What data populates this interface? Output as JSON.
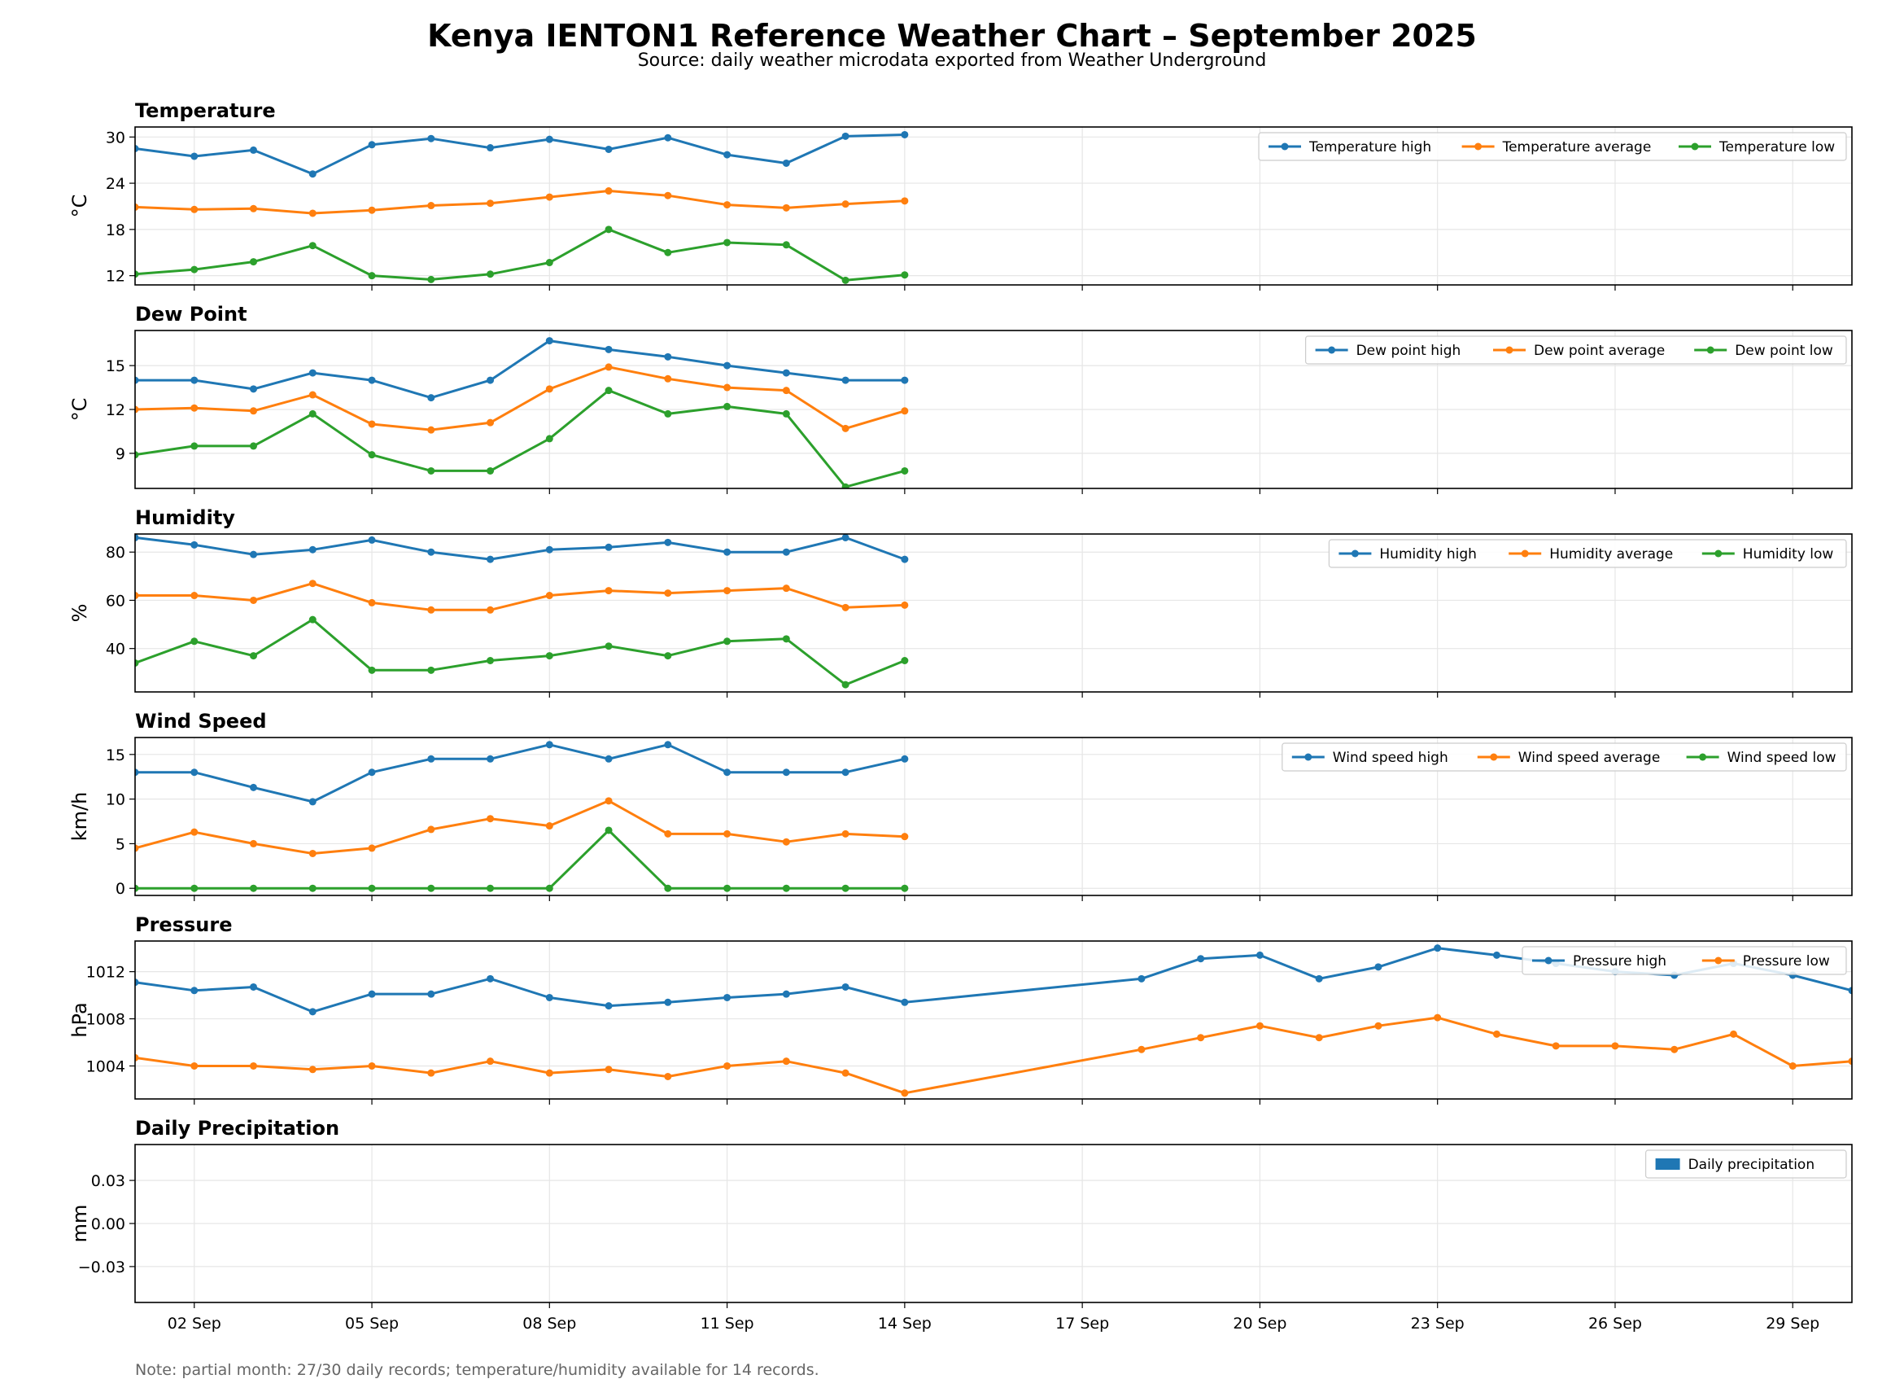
{
  "header": {
    "title": "Kenya IENTON1 Reference Weather Chart – September 2025",
    "subtitle": "Source: daily weather microdata exported from Weather Underground"
  },
  "footnote": "Note: partial month: 27/30 daily records; temperature/humidity available for 14 records.",
  "colors": {
    "blue": "#1f77b4",
    "orange": "#ff7f0e",
    "green": "#2ca02c",
    "grid": "#e6e6e6"
  },
  "x_axis": {
    "ticks": [
      2,
      5,
      8,
      11,
      14,
      17,
      20,
      23,
      26,
      29
    ],
    "tick_labels": [
      "02 Sep",
      "05 Sep",
      "08 Sep",
      "11 Sep",
      "14 Sep",
      "17 Sep",
      "20 Sep",
      "23 Sep",
      "26 Sep",
      "29 Sep"
    ],
    "range": [
      1,
      30
    ]
  },
  "chart_data": [
    {
      "type": "line",
      "title": "Temperature",
      "ylabel": "°C",
      "ylim": [
        10.8,
        31.3
      ],
      "yticks": [
        12,
        18,
        24,
        30
      ],
      "legend": "top-right",
      "grid": true,
      "series": [
        {
          "name": "Temperature high",
          "color": "#1f77b4",
          "x": [
            1,
            2,
            3,
            4,
            5,
            6,
            7,
            8,
            9,
            10,
            11,
            12,
            13,
            14
          ],
          "y": [
            28.5,
            27.5,
            28.3,
            25.2,
            29,
            29.8,
            28.6,
            29.7,
            28.4,
            29.9,
            27.7,
            26.6,
            30.1,
            30.3
          ]
        },
        {
          "name": "Temperature average",
          "color": "#ff7f0e",
          "x": [
            1,
            2,
            3,
            4,
            5,
            6,
            7,
            8,
            9,
            10,
            11,
            12,
            13,
            14
          ],
          "y": [
            20.9,
            20.6,
            20.7,
            20.1,
            20.5,
            21.1,
            21.4,
            22.2,
            23,
            22.4,
            21.2,
            20.8,
            21.3,
            21.7
          ]
        },
        {
          "name": "Temperature low",
          "color": "#2ca02c",
          "x": [
            1,
            2,
            3,
            4,
            5,
            6,
            7,
            8,
            9,
            10,
            11,
            12,
            13,
            14
          ],
          "y": [
            12.2,
            12.8,
            13.8,
            15.9,
            12,
            11.5,
            12.2,
            13.7,
            18,
            15,
            16.3,
            16,
            11.4,
            12.1
          ]
        }
      ]
    },
    {
      "type": "line",
      "title": "Dew Point",
      "ylabel": "°C",
      "ylim": [
        6.6,
        17.4
      ],
      "yticks": [
        9,
        12,
        15
      ],
      "legend": "top-right",
      "grid": true,
      "series": [
        {
          "name": "Dew point high",
          "color": "#1f77b4",
          "x": [
            1,
            2,
            3,
            4,
            5,
            6,
            7,
            8,
            9,
            10,
            11,
            12,
            13,
            14
          ],
          "y": [
            14,
            14,
            13.4,
            14.5,
            14,
            12.8,
            14,
            16.7,
            16.1,
            15.6,
            15,
            14.5,
            14,
            14
          ]
        },
        {
          "name": "Dew point average",
          "color": "#ff7f0e",
          "x": [
            1,
            2,
            3,
            4,
            5,
            6,
            7,
            8,
            9,
            10,
            11,
            12,
            13,
            14
          ],
          "y": [
            12,
            12.1,
            11.9,
            13,
            11,
            10.6,
            11.1,
            13.4,
            14.9,
            14.1,
            13.5,
            13.3,
            10.7,
            11.9
          ]
        },
        {
          "name": "Dew point low",
          "color": "#2ca02c",
          "x": [
            1,
            2,
            3,
            4,
            5,
            6,
            7,
            8,
            9,
            10,
            11,
            12,
            13,
            14
          ],
          "y": [
            8.9,
            9.5,
            9.5,
            11.7,
            8.9,
            7.8,
            7.8,
            10,
            13.3,
            11.7,
            12.2,
            11.7,
            6.7,
            7.8
          ]
        }
      ]
    },
    {
      "type": "line",
      "title": "Humidity",
      "ylabel": "%",
      "ylim": [
        22,
        87.5
      ],
      "yticks": [
        40,
        60,
        80
      ],
      "legend": "top-right",
      "grid": true,
      "series": [
        {
          "name": "Humidity high",
          "color": "#1f77b4",
          "x": [
            1,
            2,
            3,
            4,
            5,
            6,
            7,
            8,
            9,
            10,
            11,
            12,
            13,
            14
          ],
          "y": [
            86,
            83,
            79,
            81,
            85,
            80,
            77,
            81,
            82,
            84,
            80,
            80,
            86,
            77
          ]
        },
        {
          "name": "Humidity average",
          "color": "#ff7f0e",
          "x": [
            1,
            2,
            3,
            4,
            5,
            6,
            7,
            8,
            9,
            10,
            11,
            12,
            13,
            14
          ],
          "y": [
            62,
            62,
            60,
            67,
            59,
            56,
            56,
            62,
            64,
            63,
            64,
            65,
            57,
            58
          ]
        },
        {
          "name": "Humidity low",
          "color": "#2ca02c",
          "x": [
            1,
            2,
            3,
            4,
            5,
            6,
            7,
            8,
            9,
            10,
            11,
            12,
            13,
            14
          ],
          "y": [
            34,
            43,
            37,
            52,
            31,
            31,
            35,
            37,
            41,
            37,
            43,
            44,
            25,
            35
          ]
        }
      ]
    },
    {
      "type": "line",
      "title": "Wind Speed",
      "ylabel": "km/h",
      "ylim": [
        -0.8,
        16.9
      ],
      "yticks": [
        0,
        5,
        10,
        15
      ],
      "legend": "top-right",
      "grid": true,
      "series": [
        {
          "name": "Wind speed high",
          "color": "#1f77b4",
          "x": [
            1,
            2,
            3,
            4,
            5,
            6,
            7,
            8,
            9,
            10,
            11,
            12,
            13,
            14
          ],
          "y": [
            13,
            13,
            11.3,
            9.7,
            13,
            14.5,
            14.5,
            16.1,
            14.5,
            16.1,
            13,
            13,
            13,
            14.5
          ]
        },
        {
          "name": "Wind speed average",
          "color": "#ff7f0e",
          "x": [
            1,
            2,
            3,
            4,
            5,
            6,
            7,
            8,
            9,
            10,
            11,
            12,
            13,
            14
          ],
          "y": [
            4.5,
            6.3,
            5,
            3.9,
            4.5,
            6.6,
            7.8,
            7,
            9.8,
            6.1,
            6.1,
            5.2,
            6.1,
            5.8
          ]
        },
        {
          "name": "Wind speed low",
          "color": "#2ca02c",
          "x": [
            1,
            2,
            3,
            4,
            5,
            6,
            7,
            8,
            9,
            10,
            11,
            12,
            13,
            14
          ],
          "y": [
            0,
            0,
            0,
            0,
            0,
            0,
            0,
            0,
            6.5,
            0,
            0,
            0,
            0,
            0
          ]
        }
      ]
    },
    {
      "type": "line",
      "title": "Pressure",
      "ylabel": "hPa",
      "ylim": [
        1001.2,
        1014.6
      ],
      "yticks": [
        1004,
        1008,
        1012
      ],
      "legend": "top-right",
      "grid": true,
      "series": [
        {
          "name": "Pressure high",
          "color": "#1f77b4",
          "x": [
            1,
            2,
            3,
            4,
            5,
            6,
            7,
            8,
            9,
            10,
            11,
            12,
            13,
            14,
            18,
            19,
            20,
            21,
            22,
            23,
            24,
            25,
            26,
            27,
            28,
            29,
            30
          ],
          "y": [
            1011.1,
            1010.4,
            1010.7,
            1008.6,
            1010.1,
            1010.1,
            1011.4,
            1009.8,
            1009.1,
            1009.4,
            1009.8,
            1010.1,
            1010.7,
            1009.4,
            1011.4,
            1013.1,
            1013.4,
            1011.4,
            1012.4,
            1014,
            1013.4,
            1012.7,
            1012,
            1011.7,
            1012.7,
            1011.7,
            1010.4
          ]
        },
        {
          "name": "Pressure low",
          "color": "#ff7f0e",
          "x": [
            1,
            2,
            3,
            4,
            5,
            6,
            7,
            8,
            9,
            10,
            11,
            12,
            13,
            14,
            18,
            19,
            20,
            21,
            22,
            23,
            24,
            25,
            26,
            27,
            28,
            29,
            30
          ],
          "y": [
            1004.7,
            1004,
            1004,
            1003.7,
            1004,
            1003.4,
            1004.4,
            1003.4,
            1003.7,
            1003.1,
            1004,
            1004.4,
            1003.4,
            1001.7,
            1005.4,
            1006.4,
            1007.4,
            1006.4,
            1007.4,
            1008.1,
            1006.7,
            1005.7,
            1005.7,
            1005.4,
            1006.7,
            1004,
            1004.4
          ]
        }
      ]
    },
    {
      "type": "bar",
      "title": "Daily Precipitation",
      "ylabel": "mm",
      "ylim": [
        -0.055,
        0.055
      ],
      "yticks": [
        -0.03,
        0.0,
        0.03
      ],
      "ytick_labels": [
        "−0.03",
        "0.00",
        "0.03"
      ],
      "legend": "top-right",
      "grid": true,
      "series": [
        {
          "name": "Daily precipitation",
          "color": "#1f77b4",
          "x": [],
          "y": []
        }
      ]
    }
  ]
}
